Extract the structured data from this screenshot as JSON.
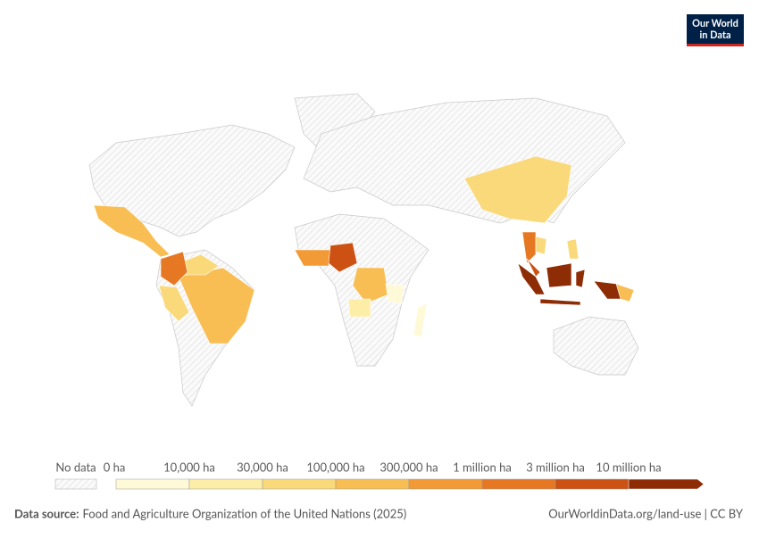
{
  "logo": {
    "line1": "Our World",
    "line2": "in Data"
  },
  "legend": {
    "no_data_label": "No data",
    "bins": [
      {
        "label": "0 ha",
        "color": "#fef9d7"
      },
      {
        "label": "10,000 ha",
        "color": "#fdeea7"
      },
      {
        "label": "30,000 ha",
        "color": "#fad97a"
      },
      {
        "label": "100,000 ha",
        "color": "#f8be53"
      },
      {
        "label": "300,000 ha",
        "color": "#f29a36"
      },
      {
        "label": "1 million ha",
        "color": "#e77823"
      },
      {
        "label": "3 million ha",
        "color": "#cc5113"
      },
      {
        "label": "10 million ha",
        "color": "#8e2c06"
      }
    ]
  },
  "source": {
    "prefix": "Data source:",
    "text": "Food and Agriculture Organization of the United Nations (2025)"
  },
  "url": "OurWorldinData.org/land-use | CC BY"
}
